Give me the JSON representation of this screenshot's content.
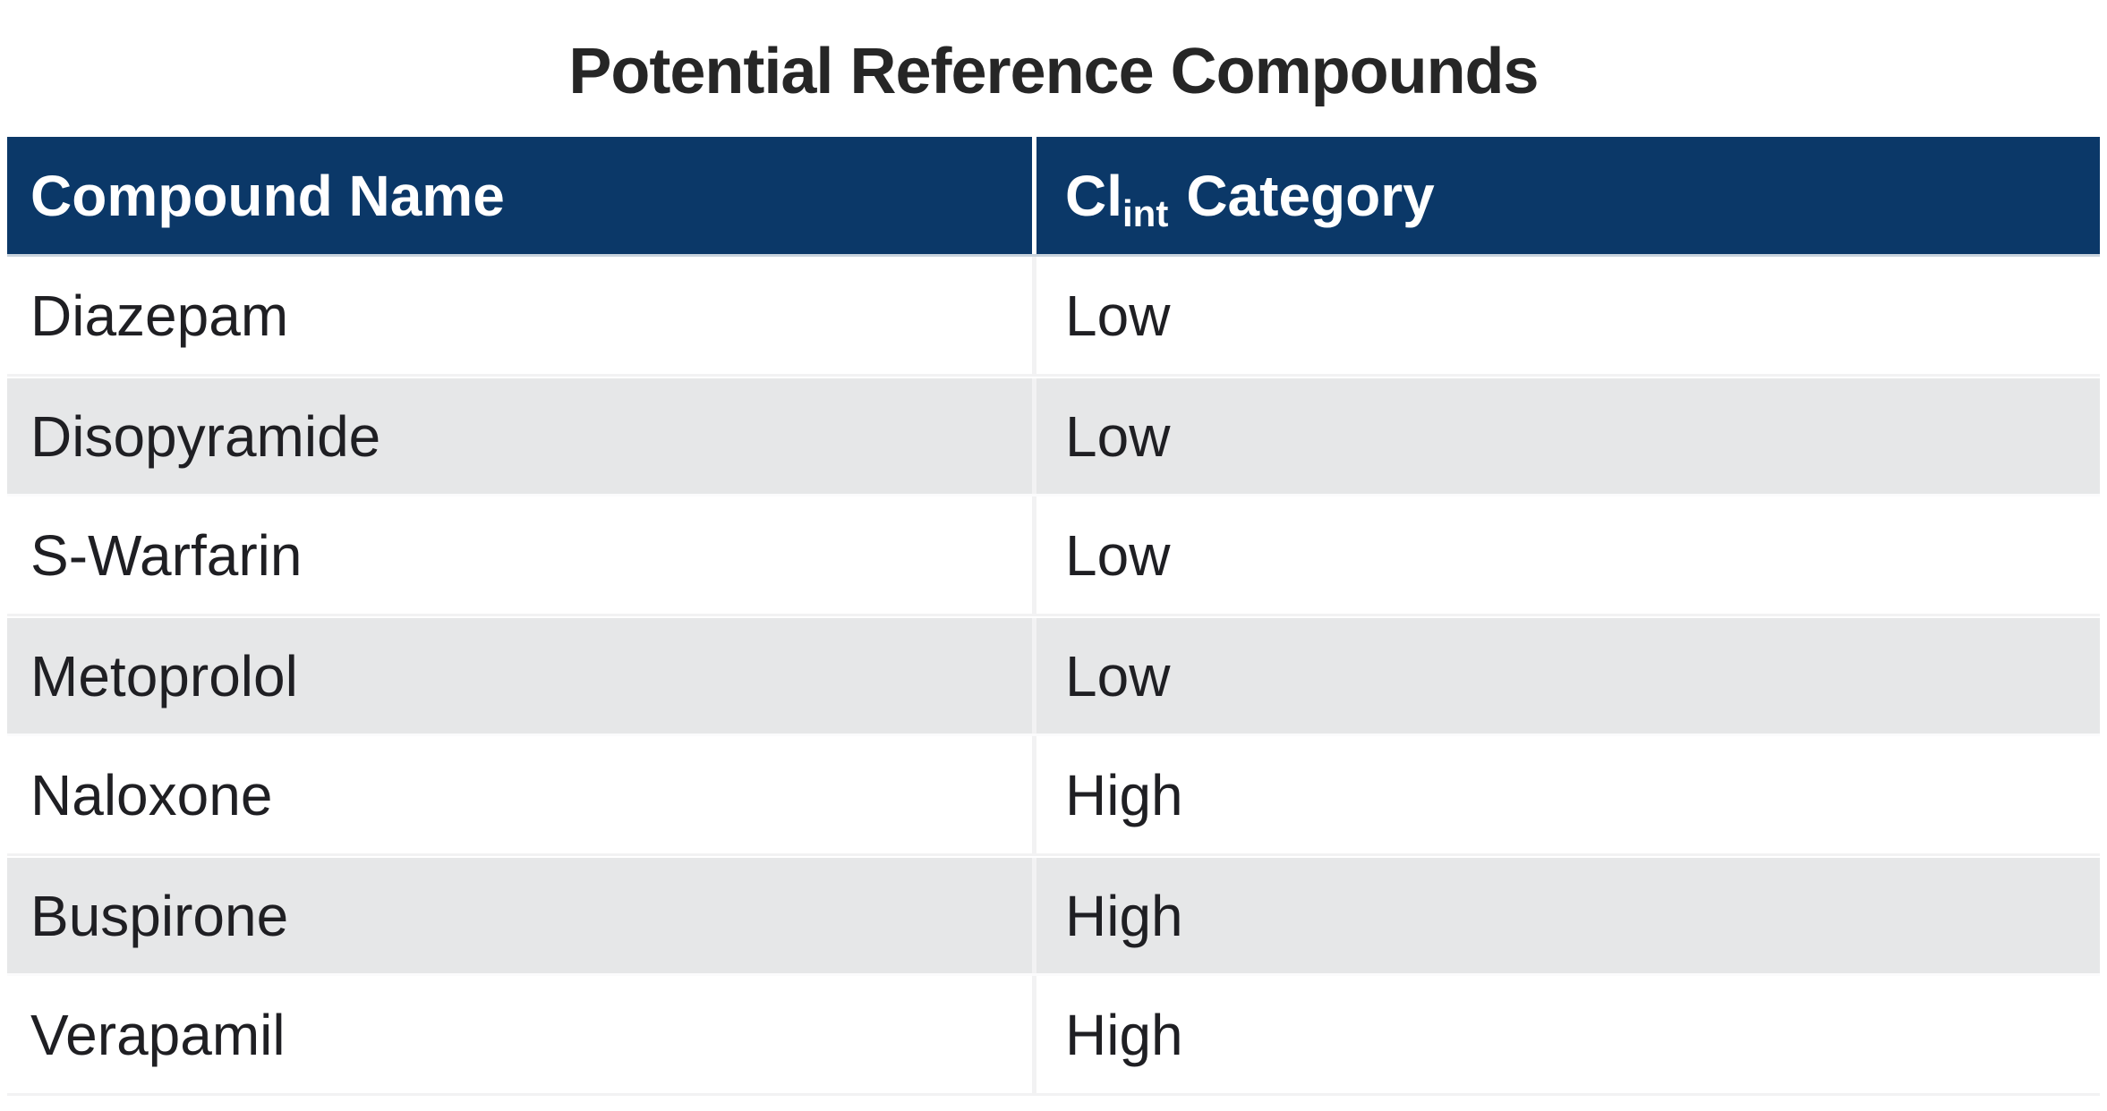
{
  "title": "Potential Reference Compounds",
  "header": {
    "col1": "Compound Name",
    "col2_main": "Cl",
    "col2_sub": "int",
    "col2_rest": "Category"
  },
  "rows": [
    {
      "compound": "Diazepam",
      "category": "Low"
    },
    {
      "compound": "Disopyramide",
      "category": "Low"
    },
    {
      "compound": "S-Warfarin",
      "category": "Low"
    },
    {
      "compound": "Metoprolol",
      "category": "Low"
    },
    {
      "compound": "Naloxone",
      "category": "High"
    },
    {
      "compound": "Buspirone",
      "category": "High"
    },
    {
      "compound": "Verapamil",
      "category": "High"
    }
  ],
  "colors": {
    "header_bg": "#0b3868",
    "header_text": "#ffffff",
    "row_bg": "#ffffff",
    "row_alt_bg": "#e6e7e8",
    "body_text": "#1f1f23",
    "title_text": "#262626",
    "grid_line": "#f2f2f3"
  },
  "chart_data": {
    "type": "table",
    "title": "Potential Reference Compounds",
    "columns": [
      "Compound Name",
      "Cl_int Category"
    ],
    "rows": [
      [
        "Diazepam",
        "Low"
      ],
      [
        "Disopyramide",
        "Low"
      ],
      [
        "S-Warfarin",
        "Low"
      ],
      [
        "Metoprolol",
        "Low"
      ],
      [
        "Naloxone",
        "High"
      ],
      [
        "Buspirone",
        "High"
      ],
      [
        "Verapamil",
        "High"
      ]
    ],
    "layout": {
      "header_style": "navy-fill-white-bold-text",
      "zebra_striping": true,
      "grid": "light"
    }
  }
}
